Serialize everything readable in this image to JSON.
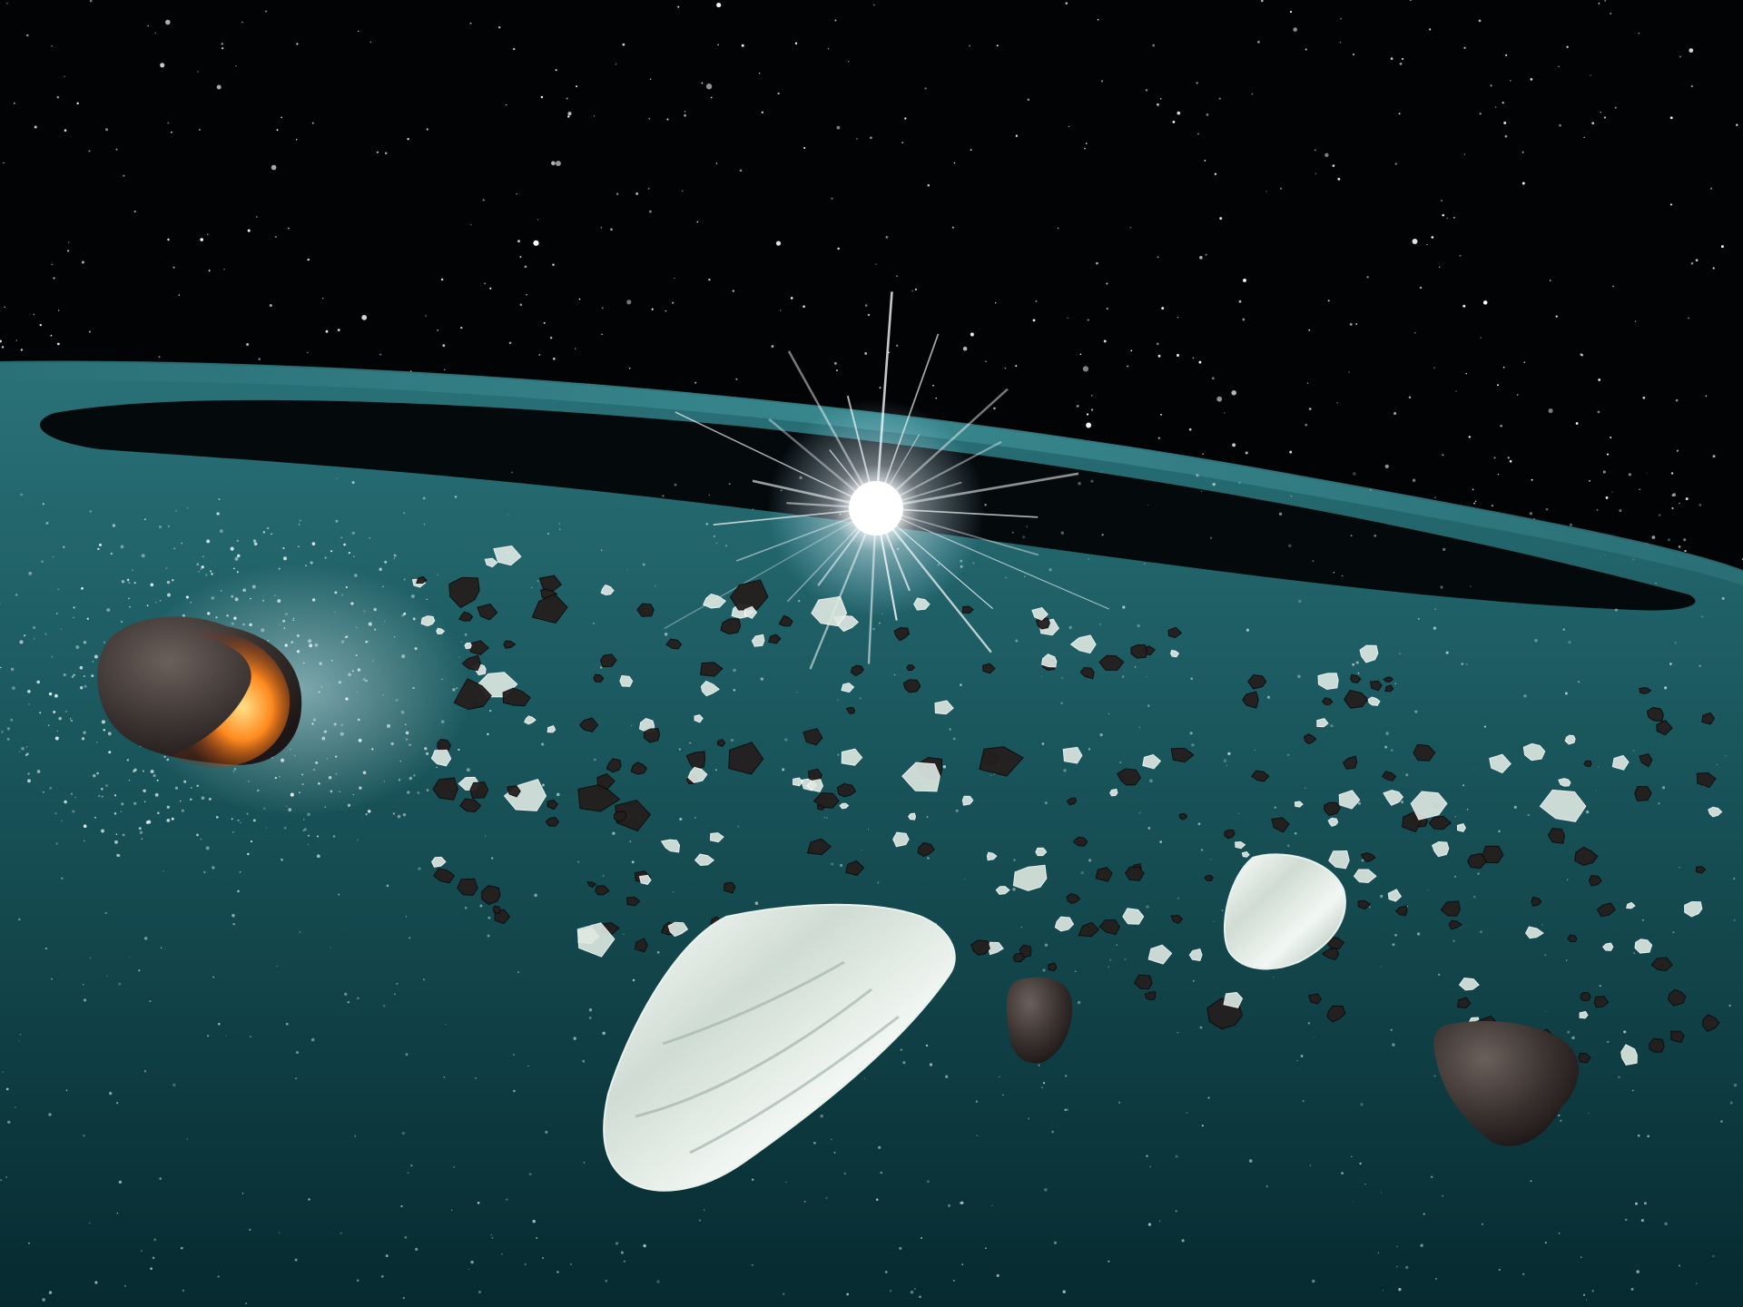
{
  "scene": {
    "subject": "star",
    "palette": {
      "space": "#020305",
      "disk_deep": "#082e33",
      "disk_mid": "#1b5a60",
      "disk_light": "#2a7278",
      "star_core": "#ffffff",
      "fire": "#ff8a1f",
      "rock": "#3a3230",
      "crystal": "#dfe9e2"
    },
    "elements": [
      "starfield",
      "central-star",
      "debris-disk",
      "disk-gap",
      "colliding-asteroid",
      "dust-spray",
      "large-crystal-fragment",
      "debris-fragments"
    ]
  }
}
